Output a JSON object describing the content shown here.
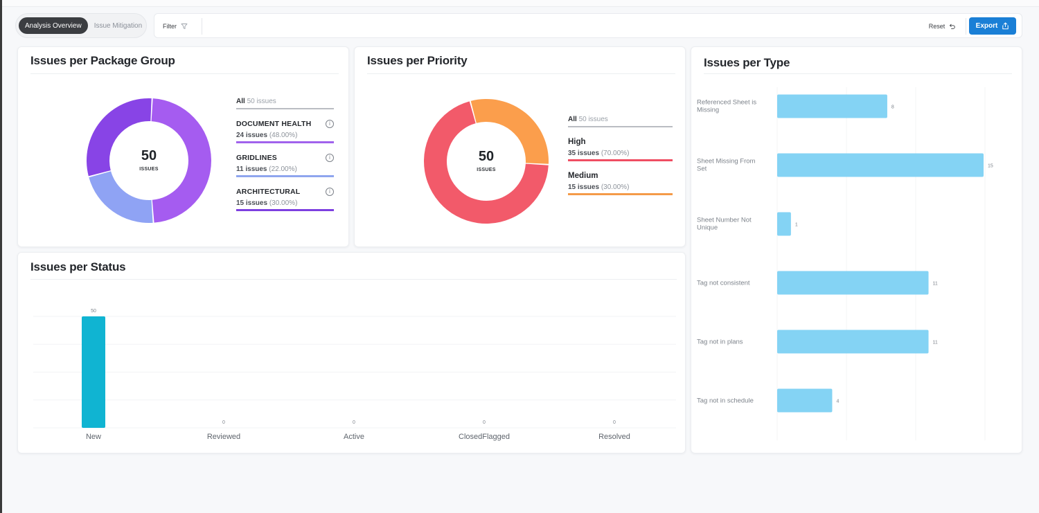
{
  "tabs": [
    {
      "label": "Analysis Overview",
      "active": true
    },
    {
      "label": "Issue Mitigation",
      "active": false
    }
  ],
  "toolbar": {
    "filter_label": "Filter",
    "reset_label": "Reset",
    "export_label": "Export"
  },
  "package_group": {
    "title": "Issues per Package Group",
    "total": "50",
    "total_unit": "ISSUES",
    "all_label": "All",
    "all_count": "50 issues",
    "items": [
      {
        "name": "DOCUMENT HEALTH",
        "count": "24 issues",
        "pct": "(48.00%)",
        "value": 24,
        "color": "#a55cf0",
        "legend_color": "#a062ec"
      },
      {
        "name": "GRIDLINES",
        "count": "11 issues",
        "pct": "(22.00%)",
        "value": 11,
        "color": "#8fa3f4",
        "legend_color": "#8fa5ee"
      },
      {
        "name": "ARCHITECTURAL",
        "count": "15 issues",
        "pct": "(30.00%)",
        "value": 15,
        "color": "#8844e6",
        "legend_color": "#7d3fe0"
      }
    ]
  },
  "priority": {
    "title": "Issues per Priority",
    "total": "50",
    "total_unit": "ISSUES",
    "all_label": "All",
    "all_count": "50 issues",
    "items": [
      {
        "name": "High",
        "count": "35 issues",
        "pct": "(70.00%)",
        "value": 35,
        "color": "#f25a6a",
        "legend_color": "#ef4e62"
      },
      {
        "name": "Medium",
        "count": "15 issues",
        "pct": "(30.00%)",
        "value": 15,
        "color": "#fb9e4c",
        "legend_color": "#f49a48"
      }
    ]
  },
  "chart_data": [
    {
      "type": "bar",
      "title": "Issues per Status",
      "categories": [
        "New",
        "Reviewed",
        "Active",
        "ClosedFlagged",
        "Resolved"
      ],
      "values": [
        50,
        0,
        0,
        0,
        0
      ],
      "value_labels": [
        "50",
        "0",
        "0",
        "0",
        "0"
      ],
      "ylim": [
        0,
        50
      ],
      "grid": true,
      "color": "#10b4d2"
    },
    {
      "type": "bar",
      "orientation": "horizontal",
      "title": "Issues per Type",
      "categories": [
        [
          "Referenced Sheet is",
          "Missing"
        ],
        [
          "Sheet Missing From",
          "Set"
        ],
        [
          "Sheet Number Not",
          "Unique"
        ],
        [
          "Tag not consistent"
        ],
        [
          "Tag not in plans"
        ],
        [
          "Tag not in schedule"
        ]
      ],
      "values": [
        8,
        15,
        1,
        11,
        11,
        4
      ],
      "value_labels": [
        "8",
        "15",
        "1",
        "11",
        "11",
        "4"
      ],
      "xlim": [
        0,
        15
      ],
      "grid": true,
      "color": "#84d3f4"
    }
  ]
}
